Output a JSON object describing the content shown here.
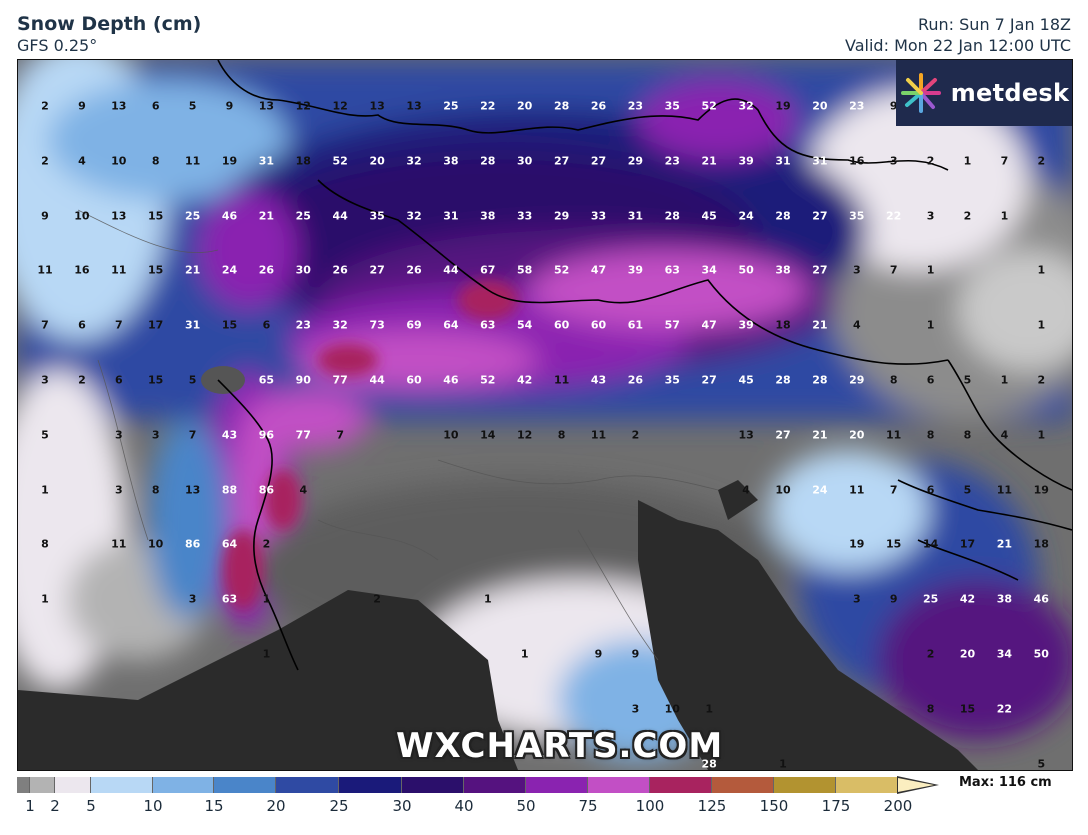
{
  "header": {
    "title": "Snow Depth (cm)",
    "model": "GFS 0.25°",
    "run": "Run: Sun 7 Jan 18Z",
    "valid": "Valid: Mon 22 Jan 12:00 UTC"
  },
  "branding": {
    "logo_text": "metdesk",
    "logo_icon": "metdesk-burst-icon",
    "watermark": "WXCHARTS.COM"
  },
  "legend": {
    "max_label": "Max: 116 cm",
    "ticks": [
      "1",
      "2",
      "5",
      "10",
      "15",
      "20",
      "25",
      "30",
      "40",
      "50",
      "75",
      "100",
      "125",
      "150",
      "175",
      "200"
    ],
    "colors": [
      "#7f7f7f",
      "#b3b3b3",
      "#ece7ee",
      "#b8d8f5",
      "#7fb2e5",
      "#4a85c9",
      "#2f4aa3",
      "#1a1a7a",
      "#2b0f6b",
      "#55127f",
      "#8a23b0",
      "#c24fc5",
      "#a8235f",
      "#b45a3c",
      "#b29330",
      "#d9bd66",
      "#fbeec0"
    ]
  },
  "grid_values": [
    [
      "2",
      "9",
      "13",
      "6",
      "5",
      "9",
      "13",
      "12",
      "12",
      "13",
      "13",
      "25",
      "22",
      "20",
      "28",
      "26",
      "23",
      "35",
      "52",
      "32",
      "19",
      "20",
      "23",
      "9",
      "",
      "",
      ""
    ],
    [
      "2",
      "4",
      "10",
      "8",
      "11",
      "19",
      "31",
      "18",
      "52",
      "20",
      "32",
      "38",
      "28",
      "30",
      "27",
      "27",
      "29",
      "23",
      "21",
      "39",
      "31",
      "31",
      "16",
      "3",
      "2",
      "1",
      "7",
      "2"
    ],
    [
      "9",
      "10",
      "13",
      "15",
      "25",
      "46",
      "21",
      "25",
      "44",
      "35",
      "32",
      "31",
      "38",
      "33",
      "29",
      "33",
      "31",
      "28",
      "45",
      "24",
      "28",
      "27",
      "35",
      "22",
      "3",
      "2",
      "1",
      ""
    ],
    [
      "11",
      "16",
      "11",
      "15",
      "21",
      "24",
      "26",
      "30",
      "26",
      "27",
      "26",
      "44",
      "67",
      "58",
      "52",
      "47",
      "39",
      "63",
      "34",
      "50",
      "38",
      "27",
      "3",
      "7",
      "1",
      "",
      "",
      "1"
    ],
    [
      "7",
      "6",
      "7",
      "17",
      "31",
      "15",
      "6",
      "23",
      "32",
      "73",
      "69",
      "64",
      "63",
      "54",
      "60",
      "60",
      "61",
      "57",
      "47",
      "39",
      "18",
      "21",
      "4",
      "",
      "1",
      "",
      "",
      "1"
    ],
    [
      "3",
      "2",
      "6",
      "15",
      "5",
      "",
      "65",
      "90",
      "77",
      "44",
      "60",
      "46",
      "52",
      "42",
      "11",
      "43",
      "26",
      "35",
      "27",
      "45",
      "28",
      "28",
      "29",
      "8",
      "6",
      "5",
      "1",
      "2"
    ],
    [
      "5",
      "",
      "3",
      "3",
      "7",
      "43",
      "96",
      "77",
      "7",
      "",
      "",
      "10",
      "14",
      "12",
      "8",
      "11",
      "2",
      "",
      "",
      "13",
      "27",
      "21",
      "20",
      "11",
      "8",
      "8",
      "4",
      "1"
    ],
    [
      "1",
      "",
      "3",
      "8",
      "13",
      "88",
      "86",
      "4",
      "",
      "",
      "",
      "",
      "",
      "",
      "",
      "",
      "",
      "",
      "",
      "4",
      "10",
      "24",
      "11",
      "7",
      "6",
      "5",
      "11",
      "19"
    ],
    [
      "8",
      "",
      "11",
      "10",
      "86",
      "64",
      "2",
      "",
      "",
      "",
      "",
      "",
      "",
      "",
      "",
      "",
      "",
      "",
      "",
      "",
      "",
      "",
      "19",
      "15",
      "14",
      "17",
      "21",
      "18"
    ],
    [
      "1",
      "",
      "",
      "",
      "3",
      "63",
      "1",
      "",
      "",
      "2",
      "",
      "",
      "1",
      "",
      "",
      "",
      "",
      "",
      "",
      "",
      "",
      "",
      "3",
      "9",
      "25",
      "42",
      "38",
      "46"
    ],
    [
      "",
      "",
      "",
      "",
      "",
      "",
      "1",
      "",
      "",
      "",
      "",
      "",
      "",
      "1",
      "",
      "9",
      "9",
      "",
      "",
      "",
      "",
      "",
      "",
      "",
      "2",
      "20",
      "34",
      "50"
    ],
    [
      "",
      "",
      "",
      "",
      "",
      "",
      "",
      "",
      "",
      "",
      "",
      "",
      "",
      "",
      "",
      "",
      "3",
      "10",
      "1",
      "",
      "",
      "",
      "",
      "",
      "8",
      "15",
      "22",
      ""
    ],
    [
      "",
      "",
      "",
      "",
      "",
      "",
      "",
      "",
      "",
      "",
      "",
      "",
      "",
      "",
      "",
      "",
      "",
      "",
      "28",
      "",
      "1",
      "",
      "",
      "",
      "",
      "",
      "",
      "5"
    ]
  ]
}
